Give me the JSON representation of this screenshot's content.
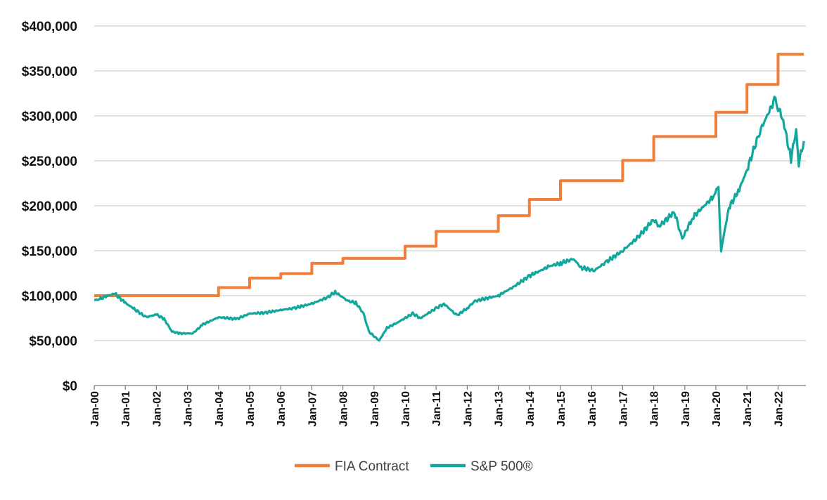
{
  "chart_data": {
    "type": "line",
    "title": "",
    "xlabel": "",
    "ylabel": "",
    "ylim": [
      0,
      400000
    ],
    "xlim": [
      "2000-01",
      "2022-11"
    ],
    "y_ticks": [
      "$0",
      "$50,000",
      "$100,000",
      "$150,000",
      "$200,000",
      "$250,000",
      "$300,000",
      "$350,000",
      "$400,000"
    ],
    "y_tick_values": [
      0,
      50000,
      100000,
      150000,
      200000,
      250000,
      300000,
      350000,
      400000
    ],
    "x_ticks": [
      "Jan-00",
      "Jan-01",
      "Jan-02",
      "Jan-03",
      "Jan-04",
      "Jan-05",
      "Jan-06",
      "Jan-07",
      "Jan-08",
      "Jan-09",
      "Jan-10",
      "Jan-11",
      "Jan-12",
      "Jan-13",
      "Jan-14",
      "Jan-15",
      "Jan-16",
      "Jan-17",
      "Jan-18",
      "Jan-19",
      "Jan-20",
      "Jan-21",
      "Jan-22"
    ],
    "grid": "horizontal",
    "legend_position": "bottom-center",
    "series": [
      {
        "name": "FIA Contract",
        "color": "#f07f3c",
        "step": true,
        "x": [
          "2000-01",
          "2004-01",
          "2005-01",
          "2006-01",
          "2007-01",
          "2008-01",
          "2010-01",
          "2011-01",
          "2013-01",
          "2014-01",
          "2015-01",
          "2017-01",
          "2018-01",
          "2020-01",
          "2021-01",
          "2022-01",
          "2022-11"
        ],
        "y": [
          100000,
          109000,
          119500,
          124500,
          136000,
          141500,
          155000,
          171500,
          189000,
          207000,
          228000,
          250500,
          277000,
          304000,
          335000,
          368500,
          368500
        ]
      },
      {
        "name": "S&P 500®",
        "color": "#12a79d",
        "step": false,
        "x": [
          "2000-01",
          "2000-03",
          "2000-06",
          "2000-09",
          "2001-01",
          "2001-04",
          "2001-09",
          "2002-01",
          "2002-04",
          "2002-07",
          "2002-10",
          "2003-03",
          "2003-07",
          "2004-01",
          "2004-08",
          "2005-01",
          "2005-07",
          "2006-01",
          "2006-06",
          "2007-01",
          "2007-07",
          "2007-10",
          "2008-03",
          "2008-06",
          "2008-09",
          "2008-11",
          "2009-03",
          "2009-06",
          "2009-10",
          "2010-04",
          "2010-07",
          "2011-01",
          "2011-04",
          "2011-09",
          "2012-01",
          "2012-04",
          "2013-01",
          "2013-07",
          "2014-01",
          "2014-09",
          "2015-01",
          "2015-06",
          "2015-09",
          "2016-02",
          "2016-07",
          "2017-01",
          "2017-07",
          "2018-01",
          "2018-03",
          "2018-09",
          "2018-12",
          "2019-04",
          "2019-12",
          "2020-02",
          "2020-03",
          "2020-06",
          "2020-10",
          "2021-01",
          "2021-06",
          "2021-12",
          "2022-01",
          "2022-03",
          "2022-06",
          "2022-08",
          "2022-09",
          "2022-11"
        ],
        "y": [
          95000,
          96000,
          100000,
          102000,
          92000,
          86000,
          76000,
          79000,
          74000,
          60000,
          58000,
          58000,
          68000,
          76000,
          74000,
          80000,
          81000,
          84000,
          86000,
          91000,
          98000,
          104000,
          94000,
          92000,
          80000,
          60000,
          50000,
          64000,
          70000,
          80000,
          75000,
          86000,
          91000,
          78000,
          86000,
          94000,
          100000,
          110000,
          122000,
          133000,
          136000,
          141000,
          131000,
          128000,
          138000,
          150000,
          165000,
          185000,
          177000,
          193000,
          163000,
          187000,
          210000,
          222000,
          150000,
          198000,
          218000,
          240000,
          283000,
          320000,
          310000,
          295000,
          252000,
          285000,
          248000,
          272000
        ]
      }
    ]
  }
}
